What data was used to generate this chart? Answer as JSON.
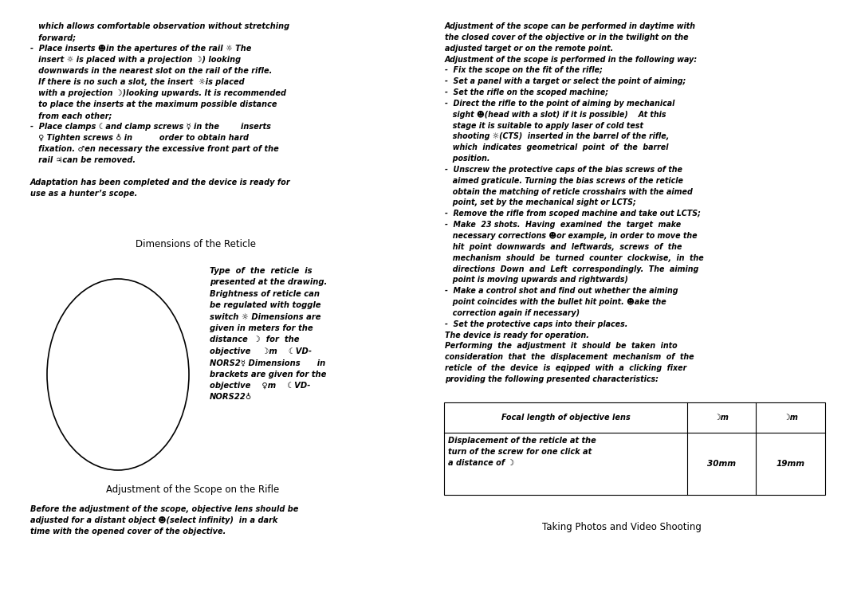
{
  "bg_color": "#ffffff",
  "text_color": "#000000",
  "left_top_text": "   which allows comfortable observation without stretching\n   forward;\n-  Place inserts ☻in the apertures of the rail ☼ The\n   insert ☼ is placed with a projection ☽) looking\n   downwards in the nearest slot on the rail of the rifle.\n   If there is no such a slot, the insert  ☼is placed\n   with a projection ☽)looking upwards. It is recommended\n   to place the inserts at the maximum possible distance\n   from each other;\n-  Place clamps ☾and clamp screws ☿ in the        inserts\n   ♀ Tighten screws ♁ in          order to obtain hard\n   fixation. ♂en necessary the excessive front part of the\n   rail ♃can be removed.\n\nAdaptation has been completed and the device is ready for\nuse as a hunter’s scope.",
  "reticle_title": "Dimensions of the Reticle",
  "reticle_text": "Type  of  the  reticle  is\npresented at the drawing.\nBrightness of reticle can\nbe regulated with toggle\nswitch ☼ Dimensions are\ngiven in meters for the\ndistance  ☽  for  the\nobjective    ☽m    ☾VD-\nNORS2☿ Dimensions      in\nbrackets are given for the\nobjective    ♀m    ☾VD-\nNORS22♁",
  "scope_title": "Adjustment of the Scope on the Rifle",
  "scope_text": "Before the adjustment of the scope, objective lens should be\nadjusted for a distant object ☻(select infinity)  in a dark\ntime with the opened cover of the objective.",
  "right_top_text": "Adjustment of the scope can be performed in daytime with\nthe closed cover of the objective or in the twilight on the\nadjusted target or on the remote point.\nAdjustment of the scope is performed in the following way:\n-  Fix the scope on the fit of the rifle;\n-  Set a panel with a target or select the point of aiming;\n-  Set the rifle on the scoped machine;\n-  Direct the rifle to the point of aiming by mechanical\n   sight ☻(head with a slot) if it is possible)    At this\n   stage it is suitable to apply laser of cold test\n   shooting ☼(CTS)  inserted in the barrel of the rifle,\n   which  indicates  geometrical  point  of  the  barrel\n   position.\n-  Unscrew the protective caps of the bias screws of the\n   aimed graticule. Turning the bias screws of the reticle\n   obtain the matching of reticle crosshairs with the aimed\n   point, set by the mechanical sight or LCTS;\n-  Remove the rifle from scoped machine and take out LCTS;\n-  Make  23 shots.  Having  examined  the  target  make\n   necessary corrections ☻or example, in order to move the\n   hit  point  downwards  and  leftwards,  screws  of  the\n   mechanism  should  be  turned  counter  clockwise,  in  the\n   directions  Down  and  Left  correspondingly.  The  aiming\n   point is moving upwards and rightwards)\n-  Make a control shot and find out whether the aiming\n   point coincides with the bullet hit point. ☻ake the\n   correction again if necessary)\n-  Set the protective caps into their places.\nThe device is ready for operation.\nPerforming  the  adjustment  it  should  be  taken  into\nconsideration  that  the  displacement  mechanism  of  the\nreticle  of  the  device  is  eqipped  with  a  clicking  fixer\nproviding the following presented characteristics:",
  "table_header": [
    "Focal length of objective lens",
    "☽m",
    "☽m"
  ],
  "table_row1": [
    "Displacement of the reticle at the\nturn of the screw for one click at\na distance of ☽",
    "30mm",
    "19mm"
  ],
  "photos_title": "Taking Photos and Video Shooting"
}
